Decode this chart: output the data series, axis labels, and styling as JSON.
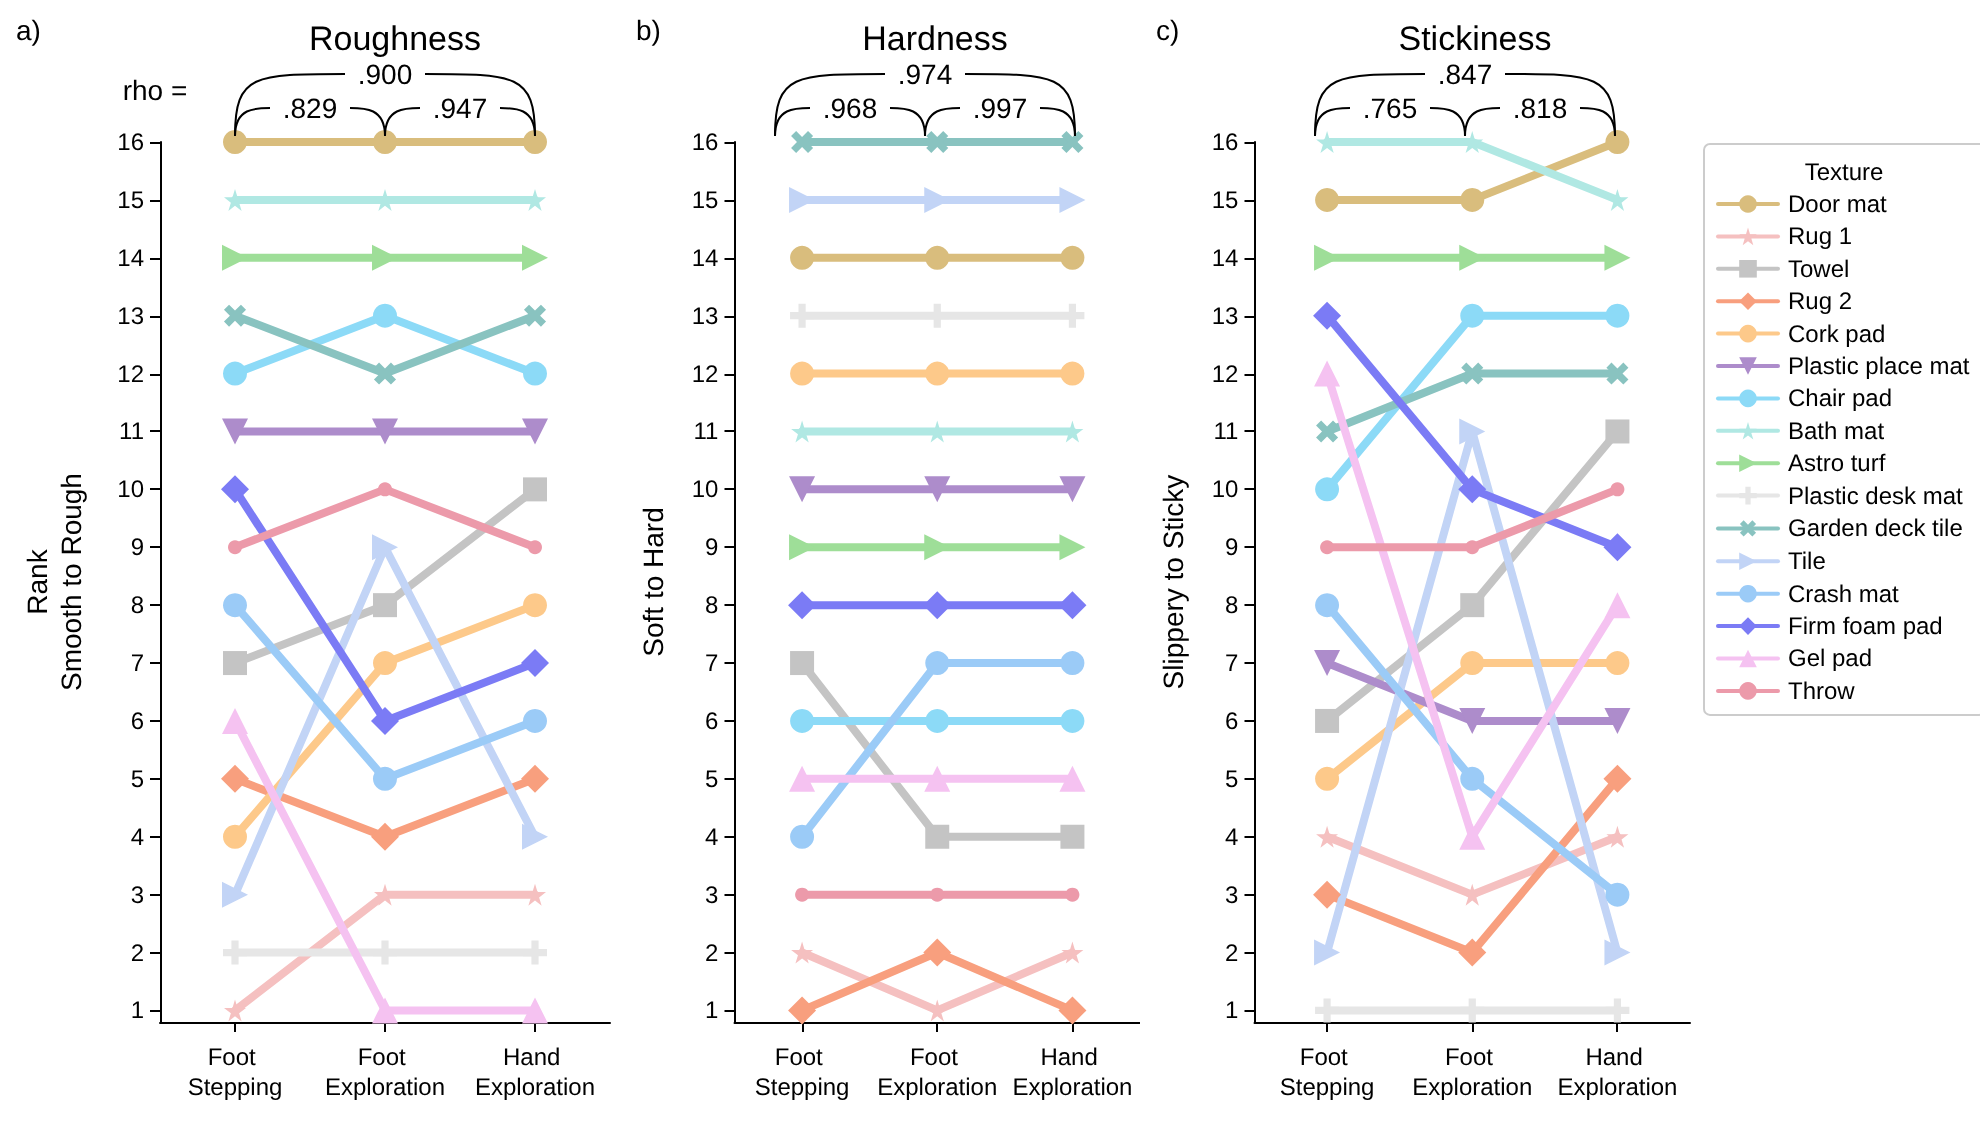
{
  "chart_data": [
    {
      "type": "line",
      "title": "Roughness",
      "ylabel": "Rank\nSmooth to Rough",
      "annotations": [
        "a)",
        "rho =",
        ".900",
        ".829",
        ".947"
      ],
      "categories": [
        "Foot Stepping",
        "Foot Exploration",
        "Hand Exploration"
      ],
      "ylim": [
        0.8,
        16
      ],
      "yticks": [
        1,
        2,
        3,
        4,
        5,
        6,
        7,
        8,
        9,
        10,
        11,
        12,
        13,
        14,
        15,
        16
      ],
      "grid": false,
      "legend": false,
      "series": [
        {
          "color": "#d9bd7d",
          "marker": "circle",
          "values": [
            16,
            16,
            16
          ]
        },
        {
          "color": "#f5c0c0",
          "marker": "star",
          "values": [
            1,
            3,
            3
          ]
        },
        {
          "color": "#c4c4c4",
          "marker": "square",
          "values": [
            7,
            8,
            10
          ]
        },
        {
          "color": "#f89f7e",
          "marker": "diamond",
          "values": [
            5,
            4,
            5
          ]
        },
        {
          "color": "#fdc98a",
          "marker": "circle",
          "values": [
            4,
            7,
            8
          ]
        },
        {
          "color": "#ad8ccb",
          "marker": "triangle-down",
          "values": [
            11,
            11,
            11
          ]
        },
        {
          "color": "#8cdaf7",
          "marker": "circle",
          "values": [
            12,
            13,
            12
          ]
        },
        {
          "color": "#b0e8e3",
          "marker": "star",
          "values": [
            15,
            15,
            15
          ]
        },
        {
          "color": "#9ede98",
          "marker": "triangle-right",
          "values": [
            14,
            14,
            14
          ]
        },
        {
          "color": "#e6e6e6",
          "marker": "plus",
          "values": [
            2,
            2,
            2
          ]
        },
        {
          "color": "#89c3c0",
          "marker": "x",
          "values": [
            13,
            12,
            13
          ]
        },
        {
          "color": "#c2d4f6",
          "marker": "triangle-right",
          "values": [
            3,
            9,
            4
          ]
        },
        {
          "color": "#9bcbf7",
          "marker": "circle",
          "values": [
            8,
            5,
            6
          ]
        },
        {
          "color": "#7b7bf5",
          "marker": "diamond",
          "values": [
            10,
            6,
            7
          ]
        },
        {
          "color": "#f5c2f1",
          "marker": "triangle",
          "values": [
            6,
            1,
            1
          ]
        },
        {
          "color": "#ec9aaa",
          "marker": "point",
          "values": [
            9,
            10,
            9
          ]
        }
      ]
    },
    {
      "type": "line",
      "title": "Hardness",
      "ylabel": "Soft to Hard",
      "annotations": [
        "b)",
        ".974",
        ".968",
        ".997"
      ],
      "categories": [
        "Foot Stepping",
        "Foot Exploration",
        "Hand Exploration"
      ],
      "ylim": [
        0.8,
        16
      ],
      "yticks": [
        1,
        2,
        3,
        4,
        5,
        6,
        7,
        8,
        9,
        10,
        11,
        12,
        13,
        14,
        15,
        16
      ],
      "grid": false,
      "legend": false,
      "series": [
        {
          "color": "#d9bd7d",
          "marker": "circle",
          "values": [
            14,
            14,
            14
          ]
        },
        {
          "color": "#f5c0c0",
          "marker": "star",
          "values": [
            2,
            1,
            2
          ]
        },
        {
          "color": "#c4c4c4",
          "marker": "square",
          "values": [
            7,
            4,
            4
          ]
        },
        {
          "color": "#f89f7e",
          "marker": "diamond",
          "values": [
            1,
            2,
            1
          ]
        },
        {
          "color": "#fdc98a",
          "marker": "circle",
          "values": [
            12,
            12,
            12
          ]
        },
        {
          "color": "#ad8ccb",
          "marker": "triangle-down",
          "values": [
            10,
            10,
            10
          ]
        },
        {
          "color": "#8cdaf7",
          "marker": "circle",
          "values": [
            6,
            6,
            6
          ]
        },
        {
          "color": "#b0e8e3",
          "marker": "star",
          "values": [
            11,
            11,
            11
          ]
        },
        {
          "color": "#9ede98",
          "marker": "triangle-right",
          "values": [
            9,
            9,
            9
          ]
        },
        {
          "color": "#e6e6e6",
          "marker": "plus",
          "values": [
            13,
            13,
            13
          ]
        },
        {
          "color": "#89c3c0",
          "marker": "x",
          "values": [
            16,
            16,
            16
          ]
        },
        {
          "color": "#c2d4f6",
          "marker": "triangle-right",
          "values": [
            15,
            15,
            15
          ]
        },
        {
          "color": "#9bcbf7",
          "marker": "circle",
          "values": [
            4,
            7,
            7
          ]
        },
        {
          "color": "#7b7bf5",
          "marker": "diamond",
          "values": [
            8,
            8,
            8
          ]
        },
        {
          "color": "#f5c2f1",
          "marker": "triangle",
          "values": [
            5,
            5,
            5
          ]
        },
        {
          "color": "#ec9aaa",
          "marker": "point",
          "values": [
            3,
            3,
            3
          ]
        }
      ]
    },
    {
      "type": "line",
      "title": "Stickiness",
      "ylabel": "Slippery to Sticky",
      "legend_title": "Texture",
      "annotations": [
        "c)",
        ".847",
        ".765",
        ".818"
      ],
      "categories": [
        "Foot Stepping",
        "Foot Exploration",
        "Hand Exploration"
      ],
      "ylim": [
        0.8,
        16
      ],
      "yticks": [
        1,
        2,
        3,
        4,
        5,
        6,
        7,
        8,
        9,
        10,
        11,
        12,
        13,
        14,
        15,
        16
      ],
      "grid": false,
      "legend": "right",
      "series": [
        {
          "name": "Door mat",
          "color": "#d9bd7d",
          "marker": "circle",
          "values": [
            15,
            15,
            16
          ]
        },
        {
          "name": "Rug 1",
          "color": "#f5c0c0",
          "marker": "star",
          "values": [
            4,
            3,
            4
          ]
        },
        {
          "name": "Towel",
          "color": "#c4c4c4",
          "marker": "square",
          "values": [
            6,
            8,
            11
          ]
        },
        {
          "name": "Rug 2",
          "color": "#f89f7e",
          "marker": "diamond",
          "values": [
            3,
            2,
            5
          ]
        },
        {
          "name": "Cork pad",
          "color": "#fdc98a",
          "marker": "circle",
          "values": [
            5,
            7,
            7
          ]
        },
        {
          "name": "Plastic place mat",
          "color": "#ad8ccb",
          "marker": "triangle-down",
          "values": [
            7,
            6,
            6
          ]
        },
        {
          "name": "Chair pad",
          "color": "#8cdaf7",
          "marker": "circle",
          "values": [
            10,
            13,
            13
          ]
        },
        {
          "name": "Bath mat",
          "color": "#b0e8e3",
          "marker": "star",
          "values": [
            16,
            16,
            15
          ]
        },
        {
          "name": "Astro turf",
          "color": "#9ede98",
          "marker": "triangle-right",
          "values": [
            14,
            14,
            14
          ]
        },
        {
          "name": "Plastic desk mat",
          "color": "#e6e6e6",
          "marker": "plus",
          "values": [
            1,
            1,
            1
          ]
        },
        {
          "name": "Garden deck tile",
          "color": "#89c3c0",
          "marker": "x",
          "values": [
            11,
            12,
            12
          ]
        },
        {
          "name": "Tile",
          "color": "#c2d4f6",
          "marker": "triangle-right",
          "values": [
            2,
            11,
            2
          ]
        },
        {
          "name": "Crash mat",
          "color": "#9bcbf7",
          "marker": "circle",
          "values": [
            8,
            5,
            3
          ]
        },
        {
          "name": "Firm foam pad",
          "color": "#7b7bf5",
          "marker": "diamond",
          "values": [
            13,
            10,
            9
          ]
        },
        {
          "name": "Gel pad",
          "color": "#f5c2f1",
          "marker": "triangle",
          "values": [
            12,
            4,
            8
          ]
        },
        {
          "name": "Throw",
          "color": "#ec9aaa",
          "marker": "point",
          "values": [
            9,
            9,
            10
          ]
        }
      ]
    }
  ]
}
